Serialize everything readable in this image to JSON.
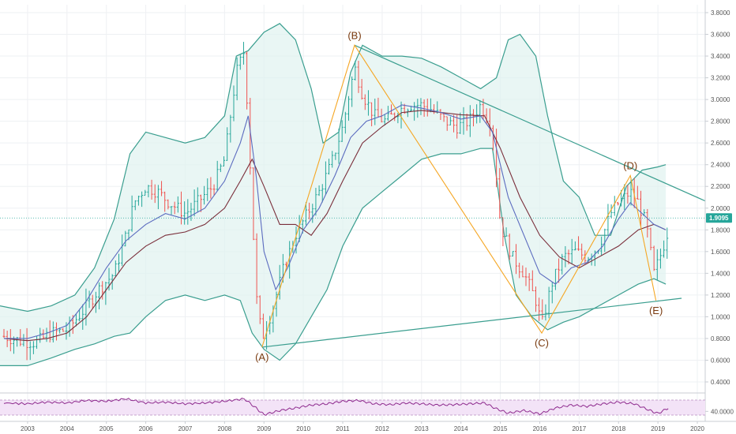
{
  "chart_data": {
    "type": "line",
    "title": "",
    "xlabel": "",
    "ylabel": "",
    "x_ticks": [
      "2003",
      "2004",
      "2005",
      "2006",
      "2007",
      "2008",
      "2009",
      "2010",
      "2011",
      "2012",
      "2013",
      "2014",
      "2015",
      "2016",
      "2017",
      "2018",
      "2019",
      "2020"
    ],
    "y_ticks": [
      "3.8000",
      "3.6000",
      "3.4000",
      "3.2000",
      "3.0000",
      "2.8000",
      "2.6000",
      "2.4000",
      "2.2000",
      "2.0000",
      "1.8000",
      "1.6000",
      "1.4000",
      "1.2000",
      "1.0000",
      "0.8000",
      "0.6000",
      "0.4000"
    ],
    "ylim": [
      0.4,
      3.8
    ],
    "xlim": [
      2002.3,
      2020.2
    ],
    "current_price": {
      "value": 1.9095,
      "label": "1.9095",
      "color": "#26a69a"
    },
    "price_bars": [
      [
        2002.4,
        0.82
      ],
      [
        2002.8,
        0.78
      ],
      [
        2003.2,
        0.76
      ],
      [
        2003.6,
        0.85
      ],
      [
        2004.0,
        0.88
      ],
      [
        2004.4,
        1.05
      ],
      [
        2004.8,
        1.25
      ],
      [
        2005.2,
        1.4
      ],
      [
        2005.5,
        1.75
      ],
      [
        2005.7,
        2.05
      ],
      [
        2006.0,
        2.2
      ],
      [
        2006.3,
        2.15
      ],
      [
        2006.6,
        2.05
      ],
      [
        2007.0,
        1.95
      ],
      [
        2007.3,
        2.05
      ],
      [
        2007.7,
        2.2
      ],
      [
        2008.0,
        2.45
      ],
      [
        2008.3,
        3.25
      ],
      [
        2008.5,
        3.45
      ],
      [
        2008.6,
        2.8
      ],
      [
        2008.8,
        1.2
      ],
      [
        2008.95,
        0.8
      ],
      [
        2009.2,
        1.05
      ],
      [
        2009.5,
        1.45
      ],
      [
        2009.8,
        1.75
      ],
      [
        2010.1,
        1.95
      ],
      [
        2010.4,
        2.15
      ],
      [
        2010.7,
        2.4
      ],
      [
        2011.0,
        2.75
      ],
      [
        2011.3,
        3.3
      ],
      [
        2011.5,
        3.05
      ],
      [
        2011.8,
        2.85
      ],
      [
        2012.1,
        2.8
      ],
      [
        2012.4,
        2.9
      ],
      [
        2012.7,
        2.95
      ],
      [
        2013.0,
        2.95
      ],
      [
        2013.3,
        2.9
      ],
      [
        2013.6,
        2.8
      ],
      [
        2013.9,
        2.75
      ],
      [
        2014.2,
        2.8
      ],
      [
        2014.5,
        2.95
      ],
      [
        2014.8,
        2.75
      ],
      [
        2015.0,
        1.85
      ],
      [
        2015.3,
        1.55
      ],
      [
        2015.6,
        1.4
      ],
      [
        2015.9,
        1.15
      ],
      [
        2016.05,
        0.92
      ],
      [
        2016.3,
        1.3
      ],
      [
        2016.6,
        1.55
      ],
      [
        2016.9,
        1.6
      ],
      [
        2017.2,
        1.55
      ],
      [
        2017.5,
        1.65
      ],
      [
        2017.8,
        1.95
      ],
      [
        2018.0,
        2.05
      ],
      [
        2018.3,
        2.15
      ],
      [
        2018.5,
        2.05
      ],
      [
        2018.7,
        1.85
      ],
      [
        2018.9,
        1.4
      ],
      [
        2019.1,
        1.6
      ],
      [
        2019.3,
        1.85
      ]
    ],
    "ma_short": [
      [
        2002.4,
        0.8
      ],
      [
        2003.0,
        0.8
      ],
      [
        2003.5,
        0.85
      ],
      [
        2004.0,
        0.92
      ],
      [
        2004.5,
        1.15
      ],
      [
        2005.0,
        1.45
      ],
      [
        2005.5,
        1.7
      ],
      [
        2006.0,
        1.85
      ],
      [
        2006.5,
        1.95
      ],
      [
        2007.0,
        1.9
      ],
      [
        2007.5,
        2.0
      ],
      [
        2008.0,
        2.25
      ],
      [
        2008.4,
        2.6
      ],
      [
        2008.6,
        2.85
      ],
      [
        2008.8,
        2.3
      ],
      [
        2009.0,
        1.6
      ],
      [
        2009.3,
        1.25
      ],
      [
        2009.6,
        1.45
      ],
      [
        2010.0,
        1.8
      ],
      [
        2010.4,
        2.0
      ],
      [
        2010.8,
        2.3
      ],
      [
        2011.2,
        2.65
      ],
      [
        2011.6,
        2.8
      ],
      [
        2012.0,
        2.85
      ],
      [
        2012.5,
        2.95
      ],
      [
        2013.0,
        2.92
      ],
      [
        2013.5,
        2.88
      ],
      [
        2014.0,
        2.82
      ],
      [
        2014.5,
        2.85
      ],
      [
        2014.8,
        2.7
      ],
      [
        2015.2,
        2.1
      ],
      [
        2015.6,
        1.75
      ],
      [
        2016.0,
        1.4
      ],
      [
        2016.4,
        1.3
      ],
      [
        2016.8,
        1.45
      ],
      [
        2017.2,
        1.5
      ],
      [
        2017.6,
        1.65
      ],
      [
        2018.0,
        1.9
      ],
      [
        2018.3,
        2.05
      ],
      [
        2018.6,
        1.95
      ],
      [
        2018.9,
        1.85
      ],
      [
        2019.2,
        1.8
      ]
    ],
    "ma_long": [
      [
        2002.4,
        0.8
      ],
      [
        2003.0,
        0.78
      ],
      [
        2003.5,
        0.8
      ],
      [
        2004.0,
        0.85
      ],
      [
        2004.5,
        1.0
      ],
      [
        2005.0,
        1.25
      ],
      [
        2005.5,
        1.5
      ],
      [
        2006.0,
        1.65
      ],
      [
        2006.5,
        1.75
      ],
      [
        2007.0,
        1.78
      ],
      [
        2007.5,
        1.85
      ],
      [
        2008.0,
        2.0
      ],
      [
        2008.4,
        2.25
      ],
      [
        2008.7,
        2.45
      ],
      [
        2009.0,
        2.2
      ],
      [
        2009.4,
        1.85
      ],
      [
        2009.8,
        1.85
      ],
      [
        2010.2,
        1.75
      ],
      [
        2010.6,
        1.95
      ],
      [
        2011.0,
        2.25
      ],
      [
        2011.5,
        2.6
      ],
      [
        2012.0,
        2.75
      ],
      [
        2012.5,
        2.88
      ],
      [
        2013.0,
        2.9
      ],
      [
        2013.5,
        2.88
      ],
      [
        2014.0,
        2.86
      ],
      [
        2014.6,
        2.85
      ],
      [
        2015.0,
        2.55
      ],
      [
        2015.5,
        2.1
      ],
      [
        2016.0,
        1.75
      ],
      [
        2016.5,
        1.55
      ],
      [
        2017.0,
        1.45
      ],
      [
        2017.5,
        1.55
      ],
      [
        2018.0,
        1.65
      ],
      [
        2018.5,
        1.8
      ],
      [
        2018.9,
        1.85
      ],
      [
        2019.2,
        1.8
      ]
    ],
    "bollinger_upper": [
      [
        2002.3,
        1.1
      ],
      [
        2003.0,
        1.05
      ],
      [
        2003.6,
        1.1
      ],
      [
        2004.2,
        1.2
      ],
      [
        2004.7,
        1.45
      ],
      [
        2005.2,
        1.9
      ],
      [
        2005.6,
        2.5
      ],
      [
        2006.0,
        2.7
      ],
      [
        2006.5,
        2.65
      ],
      [
        2007.0,
        2.6
      ],
      [
        2007.5,
        2.65
      ],
      [
        2008.0,
        2.85
      ],
      [
        2008.3,
        3.4
      ],
      [
        2008.6,
        3.45
      ],
      [
        2009.0,
        3.62
      ],
      [
        2009.4,
        3.7
      ],
      [
        2009.8,
        3.55
      ],
      [
        2010.2,
        3.1
      ],
      [
        2010.5,
        2.6
      ],
      [
        2010.9,
        2.7
      ],
      [
        2011.2,
        3.25
      ],
      [
        2011.5,
        3.5
      ],
      [
        2012.0,
        3.4
      ],
      [
        2012.5,
        3.4
      ],
      [
        2013.0,
        3.38
      ],
      [
        2013.5,
        3.3
      ],
      [
        2014.0,
        3.2
      ],
      [
        2014.5,
        3.1
      ],
      [
        2014.9,
        3.2
      ],
      [
        2015.2,
        3.55
      ],
      [
        2015.5,
        3.6
      ],
      [
        2015.9,
        3.4
      ],
      [
        2016.2,
        2.85
      ],
      [
        2016.6,
        2.25
      ],
      [
        2017.0,
        2.1
      ],
      [
        2017.4,
        1.75
      ],
      [
        2017.8,
        1.75
      ],
      [
        2018.2,
        2.2
      ],
      [
        2018.6,
        2.35
      ],
      [
        2019.0,
        2.38
      ],
      [
        2019.2,
        2.4
      ]
    ],
    "bollinger_lower": [
      [
        2002.3,
        0.55
      ],
      [
        2003.0,
        0.55
      ],
      [
        2003.6,
        0.62
      ],
      [
        2004.2,
        0.7
      ],
      [
        2004.7,
        0.75
      ],
      [
        2005.2,
        0.82
      ],
      [
        2005.6,
        0.85
      ],
      [
        2006.0,
        1.0
      ],
      [
        2006.5,
        1.15
      ],
      [
        2007.0,
        1.2
      ],
      [
        2007.5,
        1.15
      ],
      [
        2008.0,
        1.2
      ],
      [
        2008.4,
        1.15
      ],
      [
        2008.7,
        0.85
      ],
      [
        2009.0,
        0.7
      ],
      [
        2009.4,
        0.6
      ],
      [
        2009.8,
        0.75
      ],
      [
        2010.2,
        1.0
      ],
      [
        2010.6,
        1.25
      ],
      [
        2011.0,
        1.65
      ],
      [
        2011.5,
        2.0
      ],
      [
        2012.0,
        2.15
      ],
      [
        2012.5,
        2.3
      ],
      [
        2013.0,
        2.45
      ],
      [
        2013.5,
        2.5
      ],
      [
        2014.0,
        2.5
      ],
      [
        2014.5,
        2.55
      ],
      [
        2014.8,
        2.55
      ],
      [
        2015.1,
        1.75
      ],
      [
        2015.4,
        1.2
      ],
      [
        2015.8,
        1.0
      ],
      [
        2016.2,
        0.88
      ],
      [
        2016.6,
        0.95
      ],
      [
        2017.0,
        1.0
      ],
      [
        2017.5,
        1.1
      ],
      [
        2018.0,
        1.2
      ],
      [
        2018.5,
        1.3
      ],
      [
        2018.9,
        1.35
      ],
      [
        2019.2,
        1.3
      ]
    ],
    "wave_points": [
      {
        "label": "(A)",
        "x": 2008.95,
        "y": 0.72
      },
      {
        "label": "(B)",
        "x": 2011.3,
        "y": 3.5
      },
      {
        "label": "(C)",
        "x": 2016.05,
        "y": 0.85
      },
      {
        "label": "(D)",
        "x": 2018.3,
        "y": 2.3
      },
      {
        "label": "(E)",
        "x": 2018.95,
        "y": 1.15
      }
    ],
    "trendline_upper": [
      [
        2011.3,
        3.5
      ],
      [
        2020.3,
        2.05
      ]
    ],
    "trendline_lower": [
      [
        2008.95,
        0.72
      ],
      [
        2019.6,
        1.17
      ]
    ],
    "rsi": {
      "level_label": "40.0000",
      "values": [
        [
          2002.4,
          60
        ],
        [
          2003.0,
          58
        ],
        [
          2003.5,
          62
        ],
        [
          2004.0,
          60
        ],
        [
          2004.5,
          66
        ],
        [
          2005.0,
          64
        ],
        [
          2005.5,
          70
        ],
        [
          2006.0,
          60
        ],
        [
          2006.5,
          62
        ],
        [
          2007.0,
          58
        ],
        [
          2007.5,
          60
        ],
        [
          2008.0,
          64
        ],
        [
          2008.5,
          70
        ],
        [
          2008.8,
          48
        ],
        [
          2009.0,
          32
        ],
        [
          2009.4,
          42
        ],
        [
          2009.8,
          48
        ],
        [
          2010.2,
          55
        ],
        [
          2010.6,
          58
        ],
        [
          2011.0,
          64
        ],
        [
          2011.4,
          66
        ],
        [
          2011.8,
          58
        ],
        [
          2012.2,
          56
        ],
        [
          2012.6,
          60
        ],
        [
          2013.0,
          58
        ],
        [
          2013.4,
          55
        ],
        [
          2013.8,
          56
        ],
        [
          2014.2,
          58
        ],
        [
          2014.6,
          60
        ],
        [
          2014.9,
          46
        ],
        [
          2015.2,
          36
        ],
        [
          2015.6,
          42
        ],
        [
          2016.0,
          34
        ],
        [
          2016.4,
          48
        ],
        [
          2016.8,
          55
        ],
        [
          2017.2,
          52
        ],
        [
          2017.6,
          58
        ],
        [
          2018.0,
          62
        ],
        [
          2018.4,
          58
        ],
        [
          2018.8,
          42
        ],
        [
          2019.0,
          35
        ],
        [
          2019.3,
          50
        ]
      ]
    },
    "colors": {
      "bull": "#26a69a",
      "bear": "#ef5350",
      "bollinger": "#3a9e8f",
      "bollinger_fill": "#e0f2ef",
      "ma_short": "#5b6bbf",
      "ma_long": "#7a2e3a",
      "wave_lines": "#f5a623",
      "rsi_line": "#8e2a8e",
      "rsi_fill": "#f3e3f7"
    }
  }
}
